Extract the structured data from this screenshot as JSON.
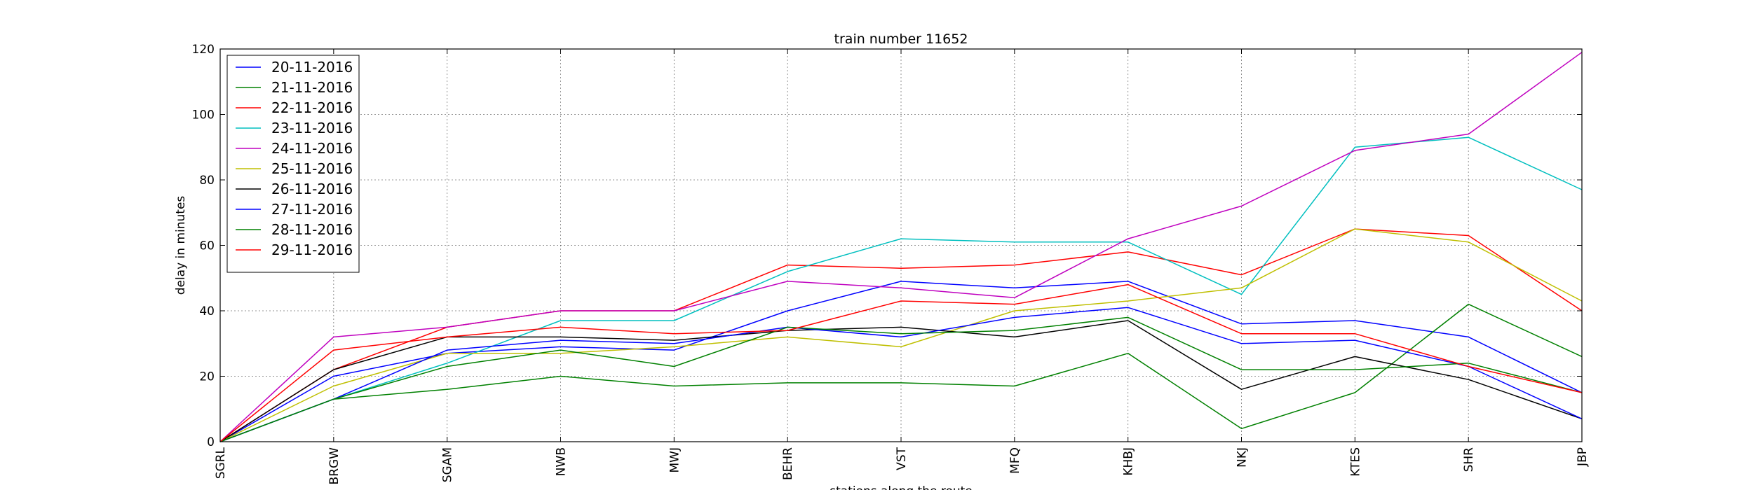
{
  "chart_data": {
    "type": "line",
    "title": "train number 11652",
    "xlabel": "stations along the route",
    "ylabel": "delay in minutes",
    "categories": [
      "SGRL",
      "BRGW",
      "SGAM",
      "NWB",
      "MWJ",
      "BEHR",
      "VST",
      "MFQ",
      "KHBJ",
      "NKJ",
      "KTES",
      "SHR",
      "JBP"
    ],
    "ylim": [
      0,
      120
    ],
    "yticks": [
      0,
      20,
      40,
      60,
      80,
      100,
      120
    ],
    "grid": true,
    "legend_position": "top-left",
    "series": [
      {
        "name": "20-11-2016",
        "color": "#0000ff",
        "values": [
          0,
          20,
          27,
          29,
          28,
          40,
          49,
          47,
          49,
          36,
          37,
          32,
          15
        ]
      },
      {
        "name": "21-11-2016",
        "color": "#008000",
        "values": [
          0,
          13,
          16,
          20,
          17,
          18,
          18,
          17,
          27,
          4,
          15,
          42,
          26
        ]
      },
      {
        "name": "22-11-2016",
        "color": "#ff0000",
        "values": [
          0,
          22,
          35,
          40,
          40,
          54,
          53,
          54,
          58,
          51,
          65,
          63,
          40
        ]
      },
      {
        "name": "23-11-2016",
        "color": "#00bfbf",
        "values": [
          0,
          13,
          24,
          37,
          37,
          52,
          62,
          61,
          61,
          45,
          90,
          93,
          77
        ]
      },
      {
        "name": "24-11-2016",
        "color": "#bf00bf",
        "values": [
          0,
          32,
          35,
          40,
          40,
          49,
          47,
          44,
          62,
          72,
          89,
          94,
          119
        ]
      },
      {
        "name": "25-11-2016",
        "color": "#bfbf00",
        "values": [
          0,
          17,
          27,
          27,
          29,
          32,
          29,
          40,
          43,
          47,
          65,
          61,
          43
        ]
      },
      {
        "name": "26-11-2016",
        "color": "#000000",
        "values": [
          0,
          22,
          32,
          32,
          31,
          34,
          35,
          32,
          37,
          16,
          26,
          19,
          7
        ]
      },
      {
        "name": "27-11-2016",
        "color": "#0000ff",
        "values": [
          0,
          13,
          28,
          31,
          30,
          35,
          32,
          38,
          41,
          30,
          31,
          23,
          7
        ]
      },
      {
        "name": "28-11-2016",
        "color": "#008000",
        "values": [
          0,
          13,
          23,
          28,
          23,
          35,
          33,
          34,
          38,
          22,
          22,
          24,
          15
        ]
      },
      {
        "name": "29-11-2016",
        "color": "#ff0000",
        "values": [
          0,
          28,
          32,
          35,
          33,
          34,
          43,
          42,
          48,
          33,
          33,
          23,
          15
        ]
      }
    ]
  }
}
